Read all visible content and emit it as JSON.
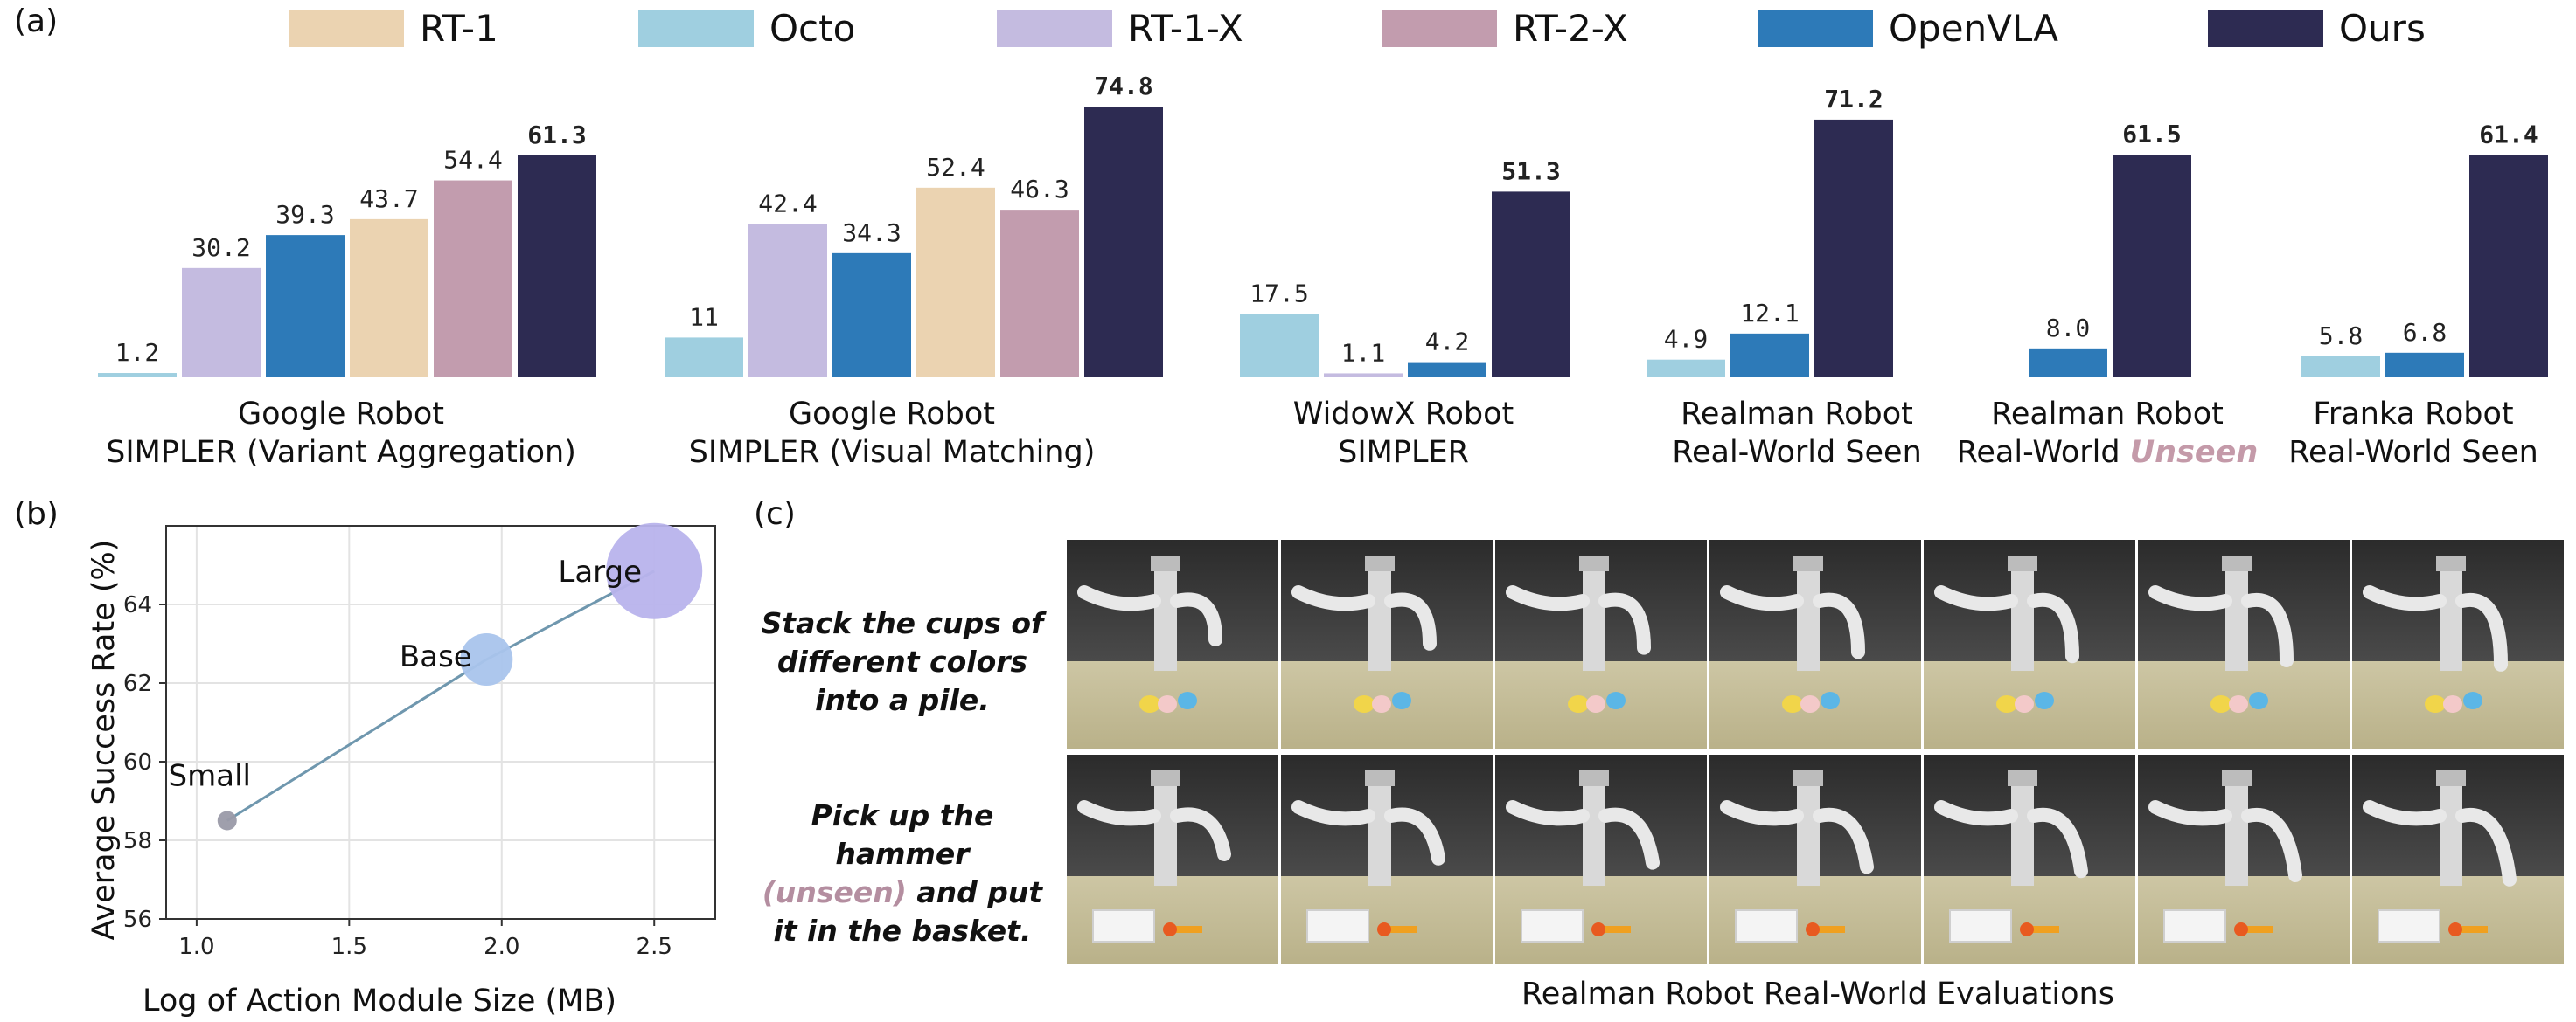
{
  "panel_labels": {
    "a": "(a)",
    "b": "(b)",
    "c": "(c)"
  },
  "chart_data": [
    {
      "type": "bar",
      "legend": [
        {
          "name": "RT-1",
          "color": "#ebd3b1"
        },
        {
          "name": "Octo",
          "color": "#9fcfe0"
        },
        {
          "name": "RT-1-X",
          "color": "#c4bbe0"
        },
        {
          "name": "RT-2-X",
          "color": "#c29cae"
        },
        {
          "name": "OpenVLA",
          "color": "#2d7ab8"
        },
        {
          "name": "Ours",
          "color": "#2d2b52"
        }
      ],
      "legend_placement": "top",
      "groups": [
        {
          "label_line1": "Google Robot",
          "label_line2": "SIMPLER (Variant Aggregation)",
          "bars": [
            {
              "series": "Octo",
              "value": 1.2,
              "label": "1.2"
            },
            {
              "series": "RT-1-X",
              "value": 30.2,
              "label": "30.2"
            },
            {
              "series": "OpenVLA",
              "value": 39.3,
              "label": "39.3"
            },
            {
              "series": "RT-1",
              "value": 43.7,
              "label": "43.7"
            },
            {
              "series": "RT-2-X",
              "value": 54.4,
              "label": "54.4"
            },
            {
              "series": "Ours",
              "value": 61.3,
              "label": "61.3"
            }
          ]
        },
        {
          "label_line1": "Google Robot",
          "label_line2": "SIMPLER (Visual Matching)",
          "bars": [
            {
              "series": "Octo",
              "value": 11,
              "label": "11"
            },
            {
              "series": "RT-1-X",
              "value": 42.4,
              "label": "42.4"
            },
            {
              "series": "OpenVLA",
              "value": 34.3,
              "label": "34.3"
            },
            {
              "series": "RT-1",
              "value": 52.4,
              "label": "52.4"
            },
            {
              "series": "RT-2-X",
              "value": 46.3,
              "label": "46.3"
            },
            {
              "series": "Ours",
              "value": 74.8,
              "label": "74.8"
            }
          ]
        },
        {
          "label_line1": "WidowX Robot",
          "label_line2": "SIMPLER",
          "bars": [
            {
              "series": "Octo",
              "value": 17.5,
              "label": "17.5"
            },
            {
              "series": "RT-1-X",
              "value": 1.1,
              "label": "1.1"
            },
            {
              "series": "OpenVLA",
              "value": 4.2,
              "label": "4.2"
            },
            {
              "series": "Ours",
              "value": 51.3,
              "label": "51.3"
            }
          ]
        },
        {
          "label_line1": "Realman Robot",
          "label_line2": "Real-World Seen",
          "bars": [
            {
              "series": "Octo",
              "value": 4.9,
              "label": "4.9"
            },
            {
              "series": "OpenVLA",
              "value": 12.1,
              "label": "12.1"
            },
            {
              "series": "Ours",
              "value": 71.2,
              "label": "71.2"
            }
          ]
        },
        {
          "label_line1": "Realman Robot",
          "label_line2": "Real-World",
          "label_highlight": "Unseen",
          "bars": [
            {
              "series": "OpenVLA",
              "value": 8.0,
              "label": "8.0"
            },
            {
              "series": "Ours",
              "value": 61.5,
              "label": "61.5"
            }
          ]
        },
        {
          "label_line1": "Franka Robot",
          "label_line2": "Real-World Seen",
          "bars": [
            {
              "series": "Octo",
              "value": 5.8,
              "label": "5.8"
            },
            {
              "series": "OpenVLA",
              "value": 6.8,
              "label": "6.8"
            },
            {
              "series": "Ours",
              "value": 61.4,
              "label": "61.4"
            }
          ]
        }
      ],
      "ylim": [
        0,
        80
      ]
    },
    {
      "type": "scatter",
      "xlabel": "Log of Action Module Size (MB)",
      "ylabel": "Average Success Rate (%)",
      "xlim": [
        0.9,
        2.7
      ],
      "ylim": [
        56,
        66
      ],
      "xticks": [
        "1.0",
        "1.5",
        "2.0",
        "2.5"
      ],
      "yticks": [
        "56",
        "58",
        "60",
        "62",
        "64"
      ],
      "grid": true,
      "points": [
        {
          "label": "Small",
          "x": 1.1,
          "y": 58.5,
          "color": "#9a9aa8",
          "size": 1
        },
        {
          "label": "Base",
          "x": 1.95,
          "y": 62.6,
          "color": "#a9c4ec",
          "size": 3
        },
        {
          "label": "Large",
          "x": 2.5,
          "y": 64.85,
          "color": "#b8b3ec",
          "size": 6
        }
      ],
      "line_color": "#6f97ae"
    }
  ],
  "tasks": [
    {
      "text": "Stack the cups of different colors into a pile."
    },
    {
      "text_before": "Pick up the hammer",
      "text_highlight": "(unseen)",
      "text_after": "and put it in the basket."
    }
  ],
  "caption": "Realman Robot Real-World Evaluations"
}
